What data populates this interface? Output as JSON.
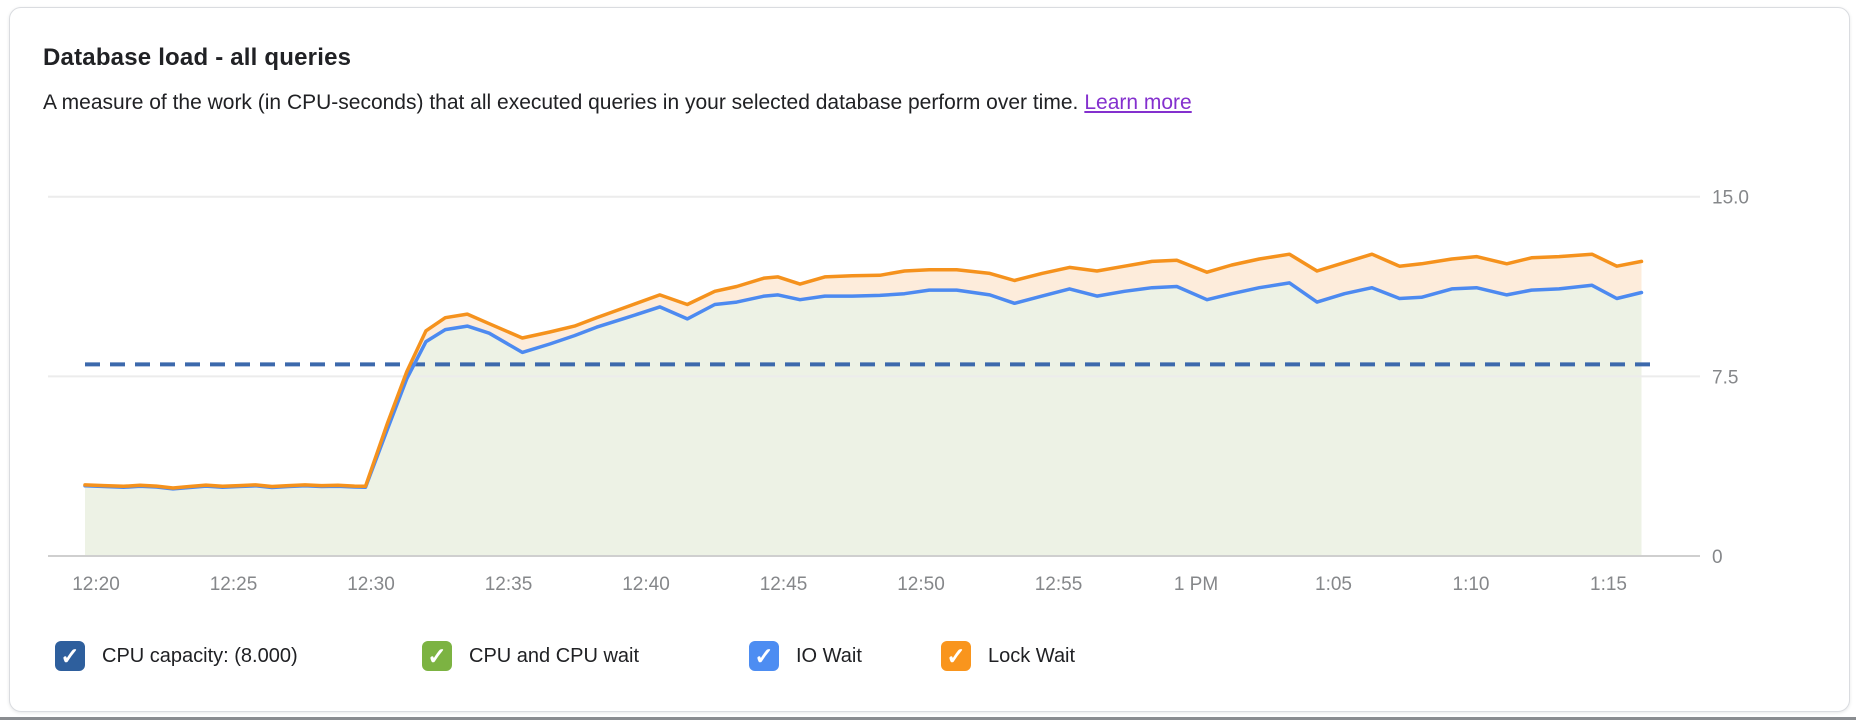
{
  "card": {
    "title": "Database load - all queries",
    "subtitle": "A measure of the work (in CPU-seconds) that all executed queries in your selected database perform over time.",
    "learn_more_label": "Learn more"
  },
  "legend": {
    "items": [
      {
        "label": "CPU capacity: (8.000)",
        "color": "#2e5f9d",
        "checked": true
      },
      {
        "label": "CPU and CPU wait",
        "color": "#7cb342",
        "checked": true
      },
      {
        "label": "IO Wait",
        "color": "#4d8df2",
        "checked": true
      },
      {
        "label": "Lock Wait",
        "color": "#f9951d",
        "checked": true
      }
    ]
  },
  "chart_data": {
    "type": "area",
    "stacked": true,
    "title": "Database load - all queries",
    "ylabel": "CPU-seconds",
    "ylim": [
      0,
      15
    ],
    "grid": "horizontal",
    "legend_position": "bottom",
    "y_axis": {
      "ticks": [
        {
          "label": "15.0",
          "value": 15
        },
        {
          "label": "7.5",
          "value": 7.5
        },
        {
          "label": "0",
          "value": 0
        }
      ]
    },
    "x_axis": {
      "note": "t = minutes after 12:00 PM",
      "ticks": [
        {
          "label": "12:20",
          "t": 20
        },
        {
          "label": "12:25",
          "t": 25
        },
        {
          "label": "12:30",
          "t": 30
        },
        {
          "label": "12:35",
          "t": 35
        },
        {
          "label": "12:40",
          "t": 40
        },
        {
          "label": "12:45",
          "t": 45
        },
        {
          "label": "12:50",
          "t": 50
        },
        {
          "label": "12:55",
          "t": 55
        },
        {
          "label": "1 PM",
          "t": 60
        },
        {
          "label": "1:05",
          "t": 65
        },
        {
          "label": "1:10",
          "t": 70
        },
        {
          "label": "1:15",
          "t": 75
        }
      ]
    },
    "capacity": {
      "label": "CPU capacity",
      "value": 8.0,
      "style": "dashed"
    },
    "series_names": [
      "CPU and CPU wait",
      "IO Wait",
      "Lock Wait"
    ],
    "points_format": [
      "t_minutes_after_12pm",
      "stack_top_through_io_wait",
      "stack_top_through_lock_wait"
    ],
    "points": [
      [
        19.6,
        2.93,
        2.97
      ],
      [
        20.3,
        2.9,
        2.94
      ],
      [
        21.0,
        2.87,
        2.91
      ],
      [
        21.6,
        2.91,
        2.95
      ],
      [
        22.2,
        2.88,
        2.92
      ],
      [
        22.8,
        2.8,
        2.84
      ],
      [
        23.4,
        2.86,
        2.9
      ],
      [
        24.0,
        2.92,
        2.96
      ],
      [
        24.6,
        2.87,
        2.91
      ],
      [
        25.2,
        2.9,
        2.94
      ],
      [
        25.8,
        2.93,
        2.97
      ],
      [
        26.4,
        2.86,
        2.9
      ],
      [
        27.0,
        2.9,
        2.94
      ],
      [
        27.6,
        2.93,
        2.97
      ],
      [
        28.2,
        2.9,
        2.94
      ],
      [
        28.8,
        2.91,
        2.95
      ],
      [
        29.4,
        2.88,
        2.92
      ],
      [
        29.8,
        2.87,
        2.91
      ],
      [
        30.6,
        5.3,
        5.55
      ],
      [
        31.3,
        7.4,
        7.7
      ],
      [
        32.0,
        8.95,
        9.4
      ],
      [
        32.7,
        9.45,
        9.95
      ],
      [
        33.5,
        9.6,
        10.1
      ],
      [
        34.3,
        9.3,
        9.7
      ],
      [
        35.5,
        8.5,
        9.1
      ],
      [
        36.5,
        8.85,
        9.35
      ],
      [
        37.4,
        9.2,
        9.6
      ],
      [
        38.2,
        9.55,
        9.95
      ],
      [
        39.3,
        9.95,
        10.4
      ],
      [
        40.5,
        10.4,
        10.9
      ],
      [
        41.5,
        9.9,
        10.5
      ],
      [
        42.5,
        10.5,
        11.05
      ],
      [
        43.3,
        10.6,
        11.25
      ],
      [
        44.3,
        10.85,
        11.6
      ],
      [
        44.8,
        10.9,
        11.65
      ],
      [
        45.6,
        10.7,
        11.35
      ],
      [
        46.5,
        10.85,
        11.65
      ],
      [
        47.5,
        10.85,
        11.7
      ],
      [
        48.5,
        10.88,
        11.72
      ],
      [
        49.4,
        10.95,
        11.9
      ],
      [
        50.3,
        11.1,
        11.95
      ],
      [
        51.3,
        11.1,
        11.95
      ],
      [
        52.5,
        10.9,
        11.8
      ],
      [
        53.4,
        10.55,
        11.5
      ],
      [
        54.4,
        10.85,
        11.8
      ],
      [
        55.4,
        11.15,
        12.05
      ],
      [
        56.4,
        10.85,
        11.9
      ],
      [
        57.4,
        11.05,
        12.1
      ],
      [
        58.4,
        11.2,
        12.3
      ],
      [
        59.3,
        11.25,
        12.35
      ],
      [
        60.4,
        10.7,
        11.85
      ],
      [
        61.3,
        10.95,
        12.15
      ],
      [
        62.3,
        11.2,
        12.4
      ],
      [
        63.4,
        11.4,
        12.6
      ],
      [
        64.4,
        10.6,
        11.9
      ],
      [
        65.4,
        10.95,
        12.25
      ],
      [
        66.4,
        11.2,
        12.6
      ],
      [
        67.4,
        10.75,
        12.1
      ],
      [
        68.2,
        10.8,
        12.2
      ],
      [
        69.3,
        11.15,
        12.4
      ],
      [
        70.2,
        11.2,
        12.5
      ],
      [
        71.3,
        10.9,
        12.2
      ],
      [
        72.2,
        11.1,
        12.45
      ],
      [
        73.2,
        11.15,
        12.5
      ],
      [
        74.4,
        11.3,
        12.6
      ],
      [
        75.3,
        10.75,
        12.1
      ],
      [
        76.2,
        11.0,
        12.3
      ]
    ],
    "colors": {
      "cpu_area_fill": "#edf2e5",
      "lock_band_fill": "#fdecdb",
      "io_wait_line": "#4d8af0",
      "lock_wait_line": "#f5921d",
      "capacity_line": "#3c69ac",
      "gridline": "#ececec",
      "baseline": "#cfcfcf",
      "axis_text": "#85878a"
    }
  }
}
